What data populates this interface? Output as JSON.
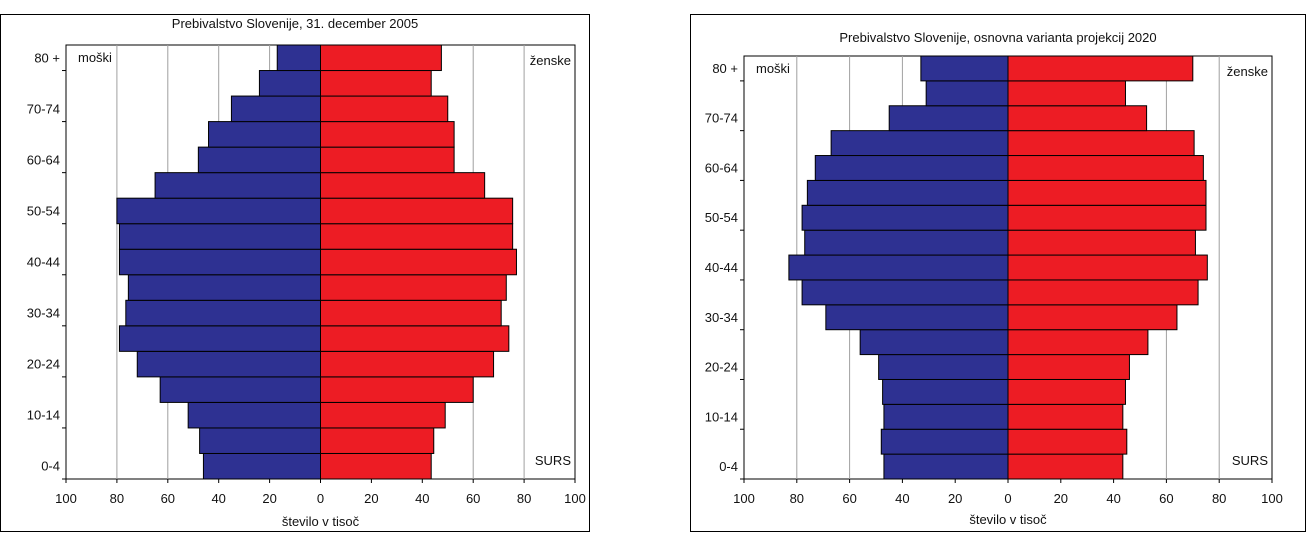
{
  "chart_data": [
    {
      "type": "bar",
      "orientation": "horizontal-pyramid",
      "title": "Prebivalstvo Slovenije, 31. december 2005",
      "xlabel": "število v tisoč",
      "left_label": "moški",
      "right_label": "ženske",
      "source_label": "SURS",
      "xlim": [
        -100,
        100
      ],
      "xticks": [
        "100",
        "80",
        "60",
        "40",
        "20",
        "0",
        "20",
        "40",
        "60",
        "80",
        "100"
      ],
      "grid": true,
      "age_groups": [
        "0-4",
        "5-9",
        "10-14",
        "15-19",
        "20-24",
        "25-29",
        "30-34",
        "35-39",
        "40-44",
        "45-49",
        "50-54",
        "55-59",
        "60-64",
        "65-69",
        "70-74",
        "75-79",
        "80 +"
      ],
      "age_labels_shown": [
        "0-4",
        "10-14",
        "20-24",
        "30-34",
        "40-44",
        "50-54",
        "60-64",
        "70-74",
        "80 +"
      ],
      "series": [
        {
          "name": "moški",
          "color": "#2e3192",
          "values": [
            46,
            47.5,
            52,
            63,
            72,
            79,
            76.5,
            75.5,
            79,
            79,
            80,
            65,
            48,
            44,
            35,
            24,
            17
          ]
        },
        {
          "name": "ženske",
          "color": "#ed1c24",
          "values": [
            43.5,
            44.5,
            49,
            60,
            68,
            74,
            71,
            73,
            77,
            75.5,
            75.5,
            64.5,
            52.5,
            52.5,
            50,
            43.5,
            47.5
          ]
        }
      ]
    },
    {
      "type": "bar",
      "orientation": "horizontal-pyramid",
      "title": "Prebivalstvo Slovenije, osnovna varianta projekcij 2020",
      "xlabel": "število v tisoč",
      "left_label": "moški",
      "right_label": "ženske",
      "source_label": "SURS",
      "xlim": [
        -100,
        100
      ],
      "xticks": [
        "100",
        "80",
        "60",
        "40",
        "20",
        "0",
        "20",
        "40",
        "60",
        "80",
        "100"
      ],
      "grid": true,
      "age_groups": [
        "0-4",
        "5-9",
        "10-14",
        "15-19",
        "20-24",
        "25-29",
        "30-34",
        "35-39",
        "40-44",
        "45-49",
        "50-54",
        "55-59",
        "60-64",
        "65-69",
        "70-74",
        "75-79",
        "80 +"
      ],
      "age_labels_shown": [
        "0-4",
        "10-14",
        "20-24",
        "30-34",
        "40-44",
        "50-54",
        "60-64",
        "70-74",
        "80 +"
      ],
      "series": [
        {
          "name": "moški",
          "color": "#2e3192",
          "values": [
            47,
            48,
            47,
            47.5,
            49,
            56,
            69,
            78,
            83,
            77,
            78,
            76,
            73,
            67,
            45,
            31,
            33
          ]
        },
        {
          "name": "ženske",
          "color": "#ed1c24",
          "values": [
            43.5,
            45,
            43.5,
            44.5,
            46,
            53,
            64,
            72,
            75.5,
            71,
            75,
            75,
            74,
            70.5,
            52.5,
            44.5,
            70
          ]
        }
      ]
    }
  ]
}
